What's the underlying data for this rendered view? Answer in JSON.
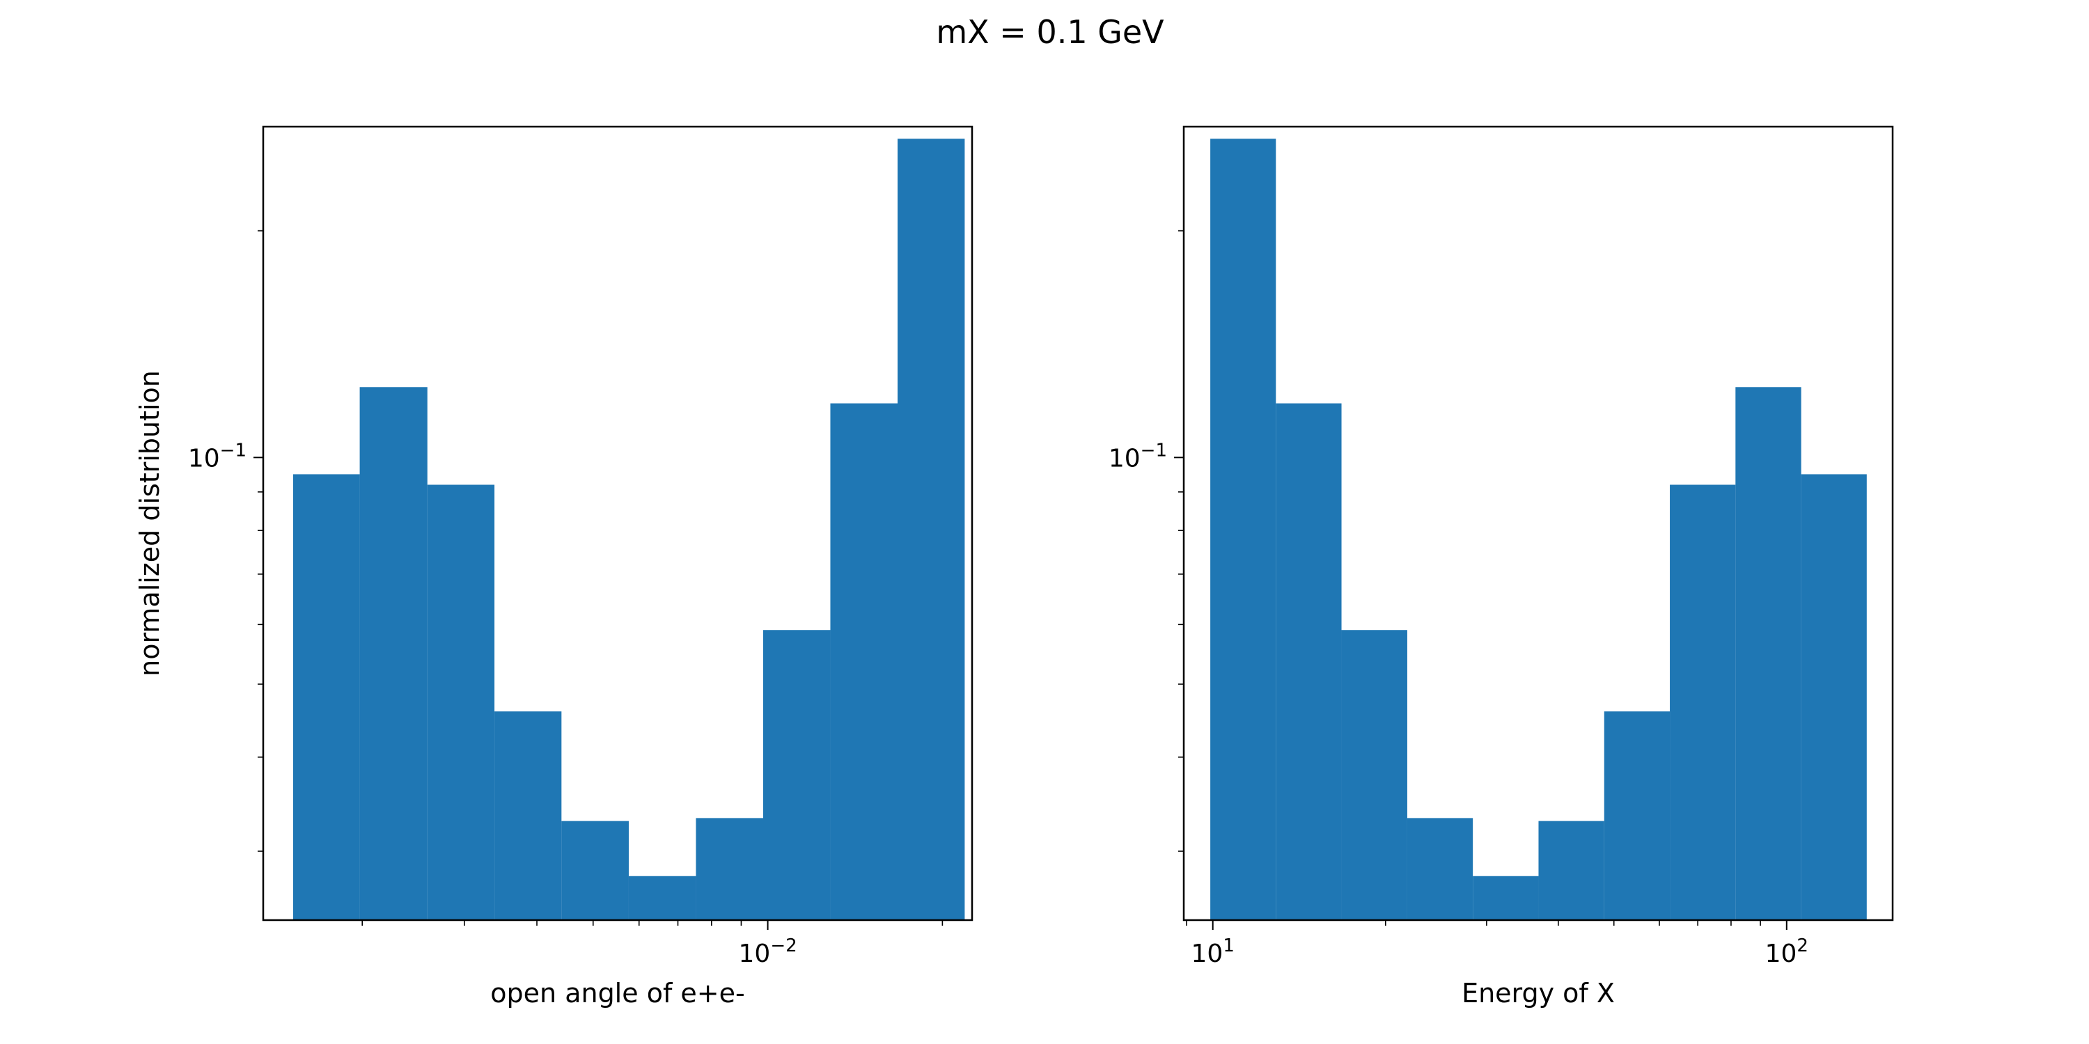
{
  "figure": {
    "title": "mX = 0.1 GeV"
  },
  "colors": {
    "bar": "#1f77b4",
    "axes": "#000000",
    "background": "#ffffff"
  },
  "chart_data": [
    {
      "type": "bar",
      "title": "",
      "xlabel": "open angle of e+e-",
      "ylabel": "normalized distribution",
      "xscale": "log",
      "yscale": "log",
      "xlim": [
        0.00135,
        0.0225
      ],
      "ylim": [
        0.0243,
        0.275
      ],
      "x_tick_labels": [
        {
          "base": "10",
          "exp": "−2",
          "value": 0.01
        }
      ],
      "y_tick_labels": [
        {
          "base": "10",
          "exp": "−1",
          "value": 0.1
        }
      ],
      "bin_edges": [
        0.00152,
        0.00198,
        0.00259,
        0.00338,
        0.00441,
        0.00576,
        0.00752,
        0.00982,
        0.01282,
        0.01674,
        0.02185
      ],
      "values": [
        0.095,
        0.124,
        0.092,
        0.046,
        0.0329,
        0.0278,
        0.0332,
        0.059,
        0.118,
        0.265
      ],
      "grid": false,
      "legend": "none"
    },
    {
      "type": "bar",
      "title": "",
      "xlabel": "Energy of X",
      "ylabel": "",
      "xscale": "log",
      "yscale": "log",
      "xlim": [
        8.9,
        153
      ],
      "ylim": [
        0.0243,
        0.275
      ],
      "x_tick_labels": [
        {
          "base": "10",
          "exp": "1",
          "value": 10
        },
        {
          "base": "10",
          "exp": "2",
          "value": 100
        }
      ],
      "y_tick_labels": [
        {
          "base": "10",
          "exp": "−1",
          "value": 0.1
        }
      ],
      "bin_edges": [
        9.9,
        12.88,
        16.76,
        21.82,
        28.39,
        36.95,
        48.09,
        62.58,
        81.44,
        106.0,
        137.9
      ],
      "values": [
        0.265,
        0.118,
        0.059,
        0.0332,
        0.0278,
        0.0329,
        0.046,
        0.092,
        0.124,
        0.095
      ],
      "grid": false,
      "legend": "none"
    }
  ]
}
